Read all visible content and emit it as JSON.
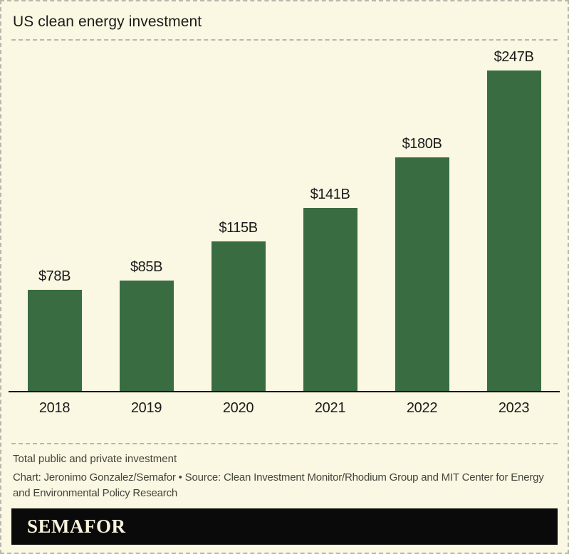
{
  "theme": {
    "background": "#FAF7E2",
    "dashed_border": "#B7B7AC",
    "text": "#1B1B1B",
    "muted_text": "#45453C"
  },
  "header": {
    "title": "US clean energy investment"
  },
  "chart_data": {
    "type": "bar",
    "title": "US clean energy investment",
    "categories": [
      "2018",
      "2019",
      "2020",
      "2021",
      "2022",
      "2023"
    ],
    "values": [
      78,
      85,
      115,
      141,
      180,
      247
    ],
    "value_labels": [
      "$78B",
      "$85B",
      "$115B",
      "$141B",
      "$180B",
      "$247B"
    ],
    "xlabel": "",
    "ylabel": "",
    "ylim": [
      0,
      250
    ],
    "grid": false,
    "legend": "none",
    "bar_color": "#3A6C42",
    "axis_color": "#141414"
  },
  "footer": {
    "note": "Total public and private investment",
    "credit_line1": "Chart: Jeronimo Gonzalez/Semafor • Source: Clean Investment Monitor/Rhodium Group and MIT Center for Energy",
    "credit_line2": "and Environmental Policy Research",
    "logo_text": "SEMAFOR",
    "logo_bg": "#0A0A0A",
    "logo_fg": "#F7F3DE"
  }
}
